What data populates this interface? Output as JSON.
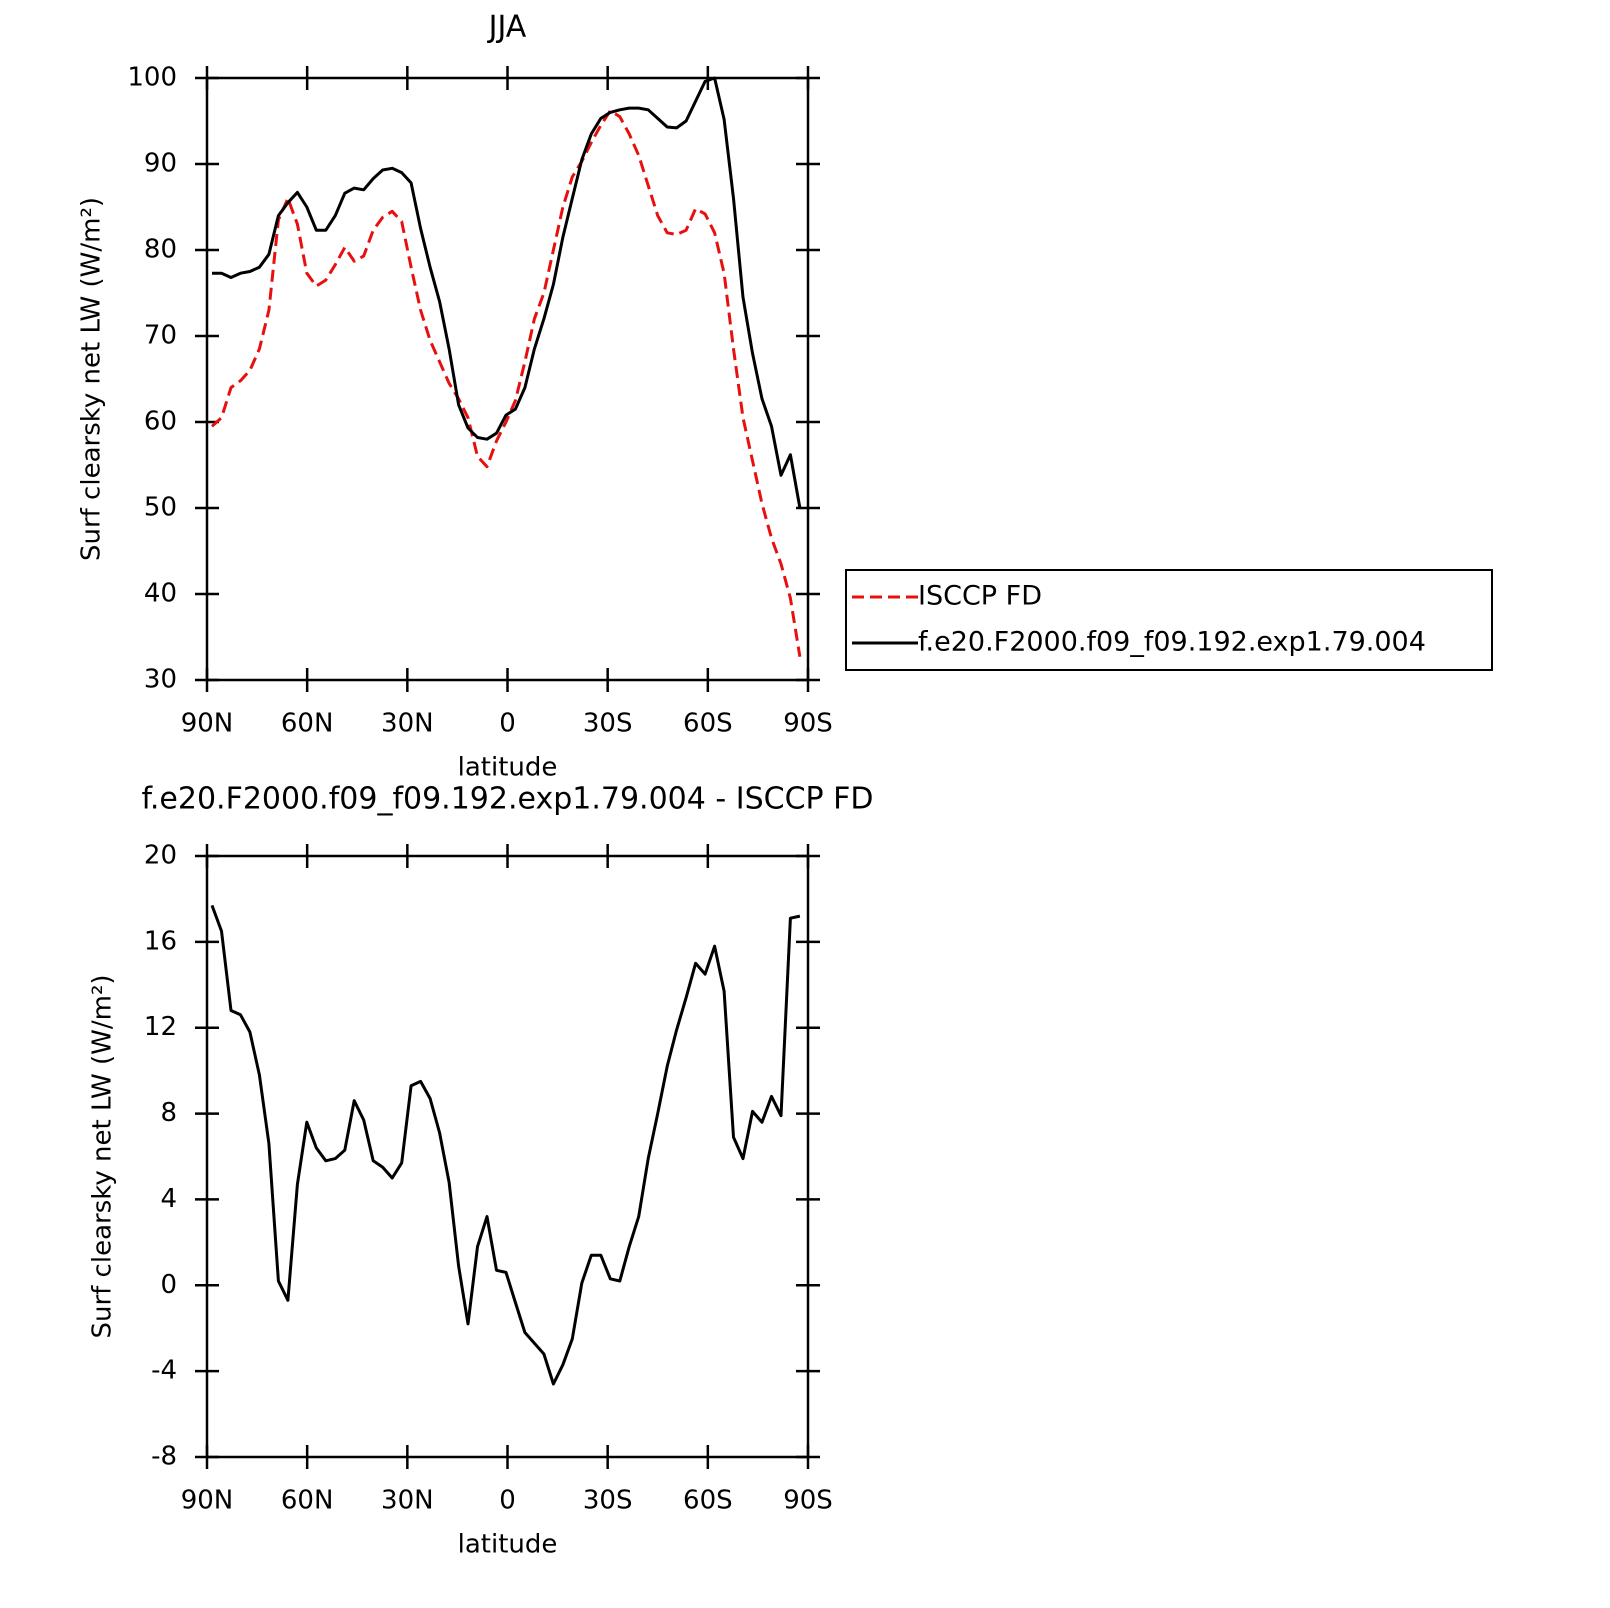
{
  "chart_data": [
    {
      "type": "line",
      "title": "JJA",
      "ylabel": "Surf clearsky net LW (W/m²)",
      "xlabel": "latitude",
      "xlim": [
        90,
        -90
      ],
      "xticks": [
        {
          "value": 90,
          "label": "90N"
        },
        {
          "value": 60,
          "label": "60N"
        },
        {
          "value": 30,
          "label": "30N"
        },
        0,
        {
          "value": -30,
          "label": "30S"
        },
        {
          "value": -60,
          "label": "60S"
        },
        {
          "value": -90,
          "label": "90S"
        }
      ],
      "ylim": [
        30,
        100
      ],
      "yticks": [
        30,
        40,
        50,
        60,
        70,
        80,
        90,
        100
      ],
      "legend": "outside-right",
      "x": [
        88.5,
        85.66,
        82.82,
        79.98,
        77.14,
        74.3,
        71.46,
        68.62,
        65.78,
        62.94,
        60.1,
        57.26,
        54.42,
        51.58,
        48.74,
        45.9,
        43.06,
        40.22,
        37.38,
        34.54,
        31.7,
        28.86,
        26.02,
        23.18,
        20.34,
        17.5,
        14.66,
        11.82,
        8.98,
        6.14,
        3.3,
        0.46,
        -2.38,
        -5.22,
        -8.06,
        -10.9,
        -13.74,
        -16.58,
        -19.42,
        -22.26,
        -25.1,
        -27.94,
        -30.78,
        -33.62,
        -36.46,
        -39.3,
        -42.14,
        -44.98,
        -47.82,
        -50.66,
        -53.5,
        -56.34,
        -59.18,
        -62.02,
        -64.86,
        -67.7,
        -70.54,
        -73.38,
        -76.22,
        -79.06,
        -81.9,
        -84.74,
        -87.58
      ],
      "series": [
        {
          "name": "ISCCP FD",
          "color": "#e8100f",
          "line_style": "dashed",
          "values": [
            59.5,
            60.5,
            64,
            64.8,
            66,
            68.5,
            73,
            83.5,
            86,
            83,
            77.3,
            75.8,
            76.5,
            78.3,
            80.3,
            78.7,
            79.3,
            82.3,
            83.8,
            84.5,
            83.3,
            78,
            73,
            69.5,
            67,
            64.5,
            62.7,
            60.5,
            56,
            54.8,
            57.8,
            60,
            62.5,
            67,
            72,
            75,
            80,
            85,
            88.5,
            90.3,
            92.5,
            94.5,
            96.2,
            95.5,
            93.5,
            91,
            87.5,
            84,
            82,
            81.8,
            82.3,
            84.8,
            84.2,
            82,
            77.3,
            68.5,
            60.5,
            55.5,
            50.5,
            46.5,
            43.5,
            39.5,
            32.7
          ]
        },
        {
          "name": "f.e20.F2000.f09_f09.192.exp1.79.004",
          "color": "#000000",
          "line_style": "solid",
          "values": [
            77.3,
            77.3,
            76.8,
            77.3,
            77.5,
            78,
            79.5,
            84,
            85.5,
            86.7,
            85,
            82.3,
            82.3,
            84,
            86.6,
            87.2,
            87,
            88.3,
            89.3,
            89.5,
            89,
            87.8,
            82.5,
            78,
            74,
            68.5,
            62,
            59.3,
            58.2,
            58,
            58.7,
            60.8,
            61.5,
            64,
            68.5,
            72,
            76,
            81.5,
            86,
            90.5,
            93.5,
            95.3,
            96,
            96.3,
            96.5,
            96.5,
            96.3,
            95.3,
            94.3,
            94.2,
            95,
            97.3,
            99.6,
            100,
            95.2,
            86,
            74.5,
            68,
            62.7,
            59.5,
            53.8,
            56.2,
            50
          ]
        }
      ]
    },
    {
      "type": "line",
      "title": "f.e20.F2000.f09_f09.192.exp1.79.004 - ISCCP FD",
      "ylabel": "Surf clearsky net LW (W/m²)",
      "xlabel": "latitude",
      "xlim": [
        90,
        -90
      ],
      "xticks": [
        {
          "value": 90,
          "label": "90N"
        },
        {
          "value": 60,
          "label": "60N"
        },
        {
          "value": 30,
          "label": "30N"
        },
        0,
        {
          "value": -30,
          "label": "30S"
        },
        {
          "value": -60,
          "label": "60S"
        },
        {
          "value": -90,
          "label": "90S"
        }
      ],
      "ylim": [
        -8,
        20
      ],
      "yticks": [
        -8,
        -4,
        0,
        4,
        8,
        12,
        16,
        20
      ],
      "x": [
        88.5,
        85.66,
        82.82,
        79.98,
        77.14,
        74.3,
        71.46,
        68.62,
        65.78,
        62.94,
        60.1,
        57.26,
        54.42,
        51.58,
        48.74,
        45.9,
        43.06,
        40.22,
        37.38,
        34.54,
        31.7,
        28.86,
        26.02,
        23.18,
        20.34,
        17.5,
        14.66,
        11.82,
        8.98,
        6.14,
        3.3,
        0.46,
        -2.38,
        -5.22,
        -8.06,
        -10.9,
        -13.74,
        -16.58,
        -19.42,
        -22.26,
        -25.1,
        -27.94,
        -30.78,
        -33.62,
        -36.46,
        -39.3,
        -42.14,
        -44.98,
        -47.82,
        -50.66,
        -53.5,
        -56.34,
        -59.18,
        -62.02,
        -64.86,
        -67.7,
        -70.54,
        -73.38,
        -76.22,
        -79.06,
        -81.9,
        -84.74,
        -87.58
      ],
      "series": [
        {
          "color": "#000000",
          "line_style": "solid",
          "values": [
            17.7,
            16.5,
            12.8,
            12.6,
            11.8,
            9.8,
            6.6,
            0.2,
            -0.7,
            4.7,
            7.6,
            6.4,
            5.8,
            5.9,
            6.3,
            8.6,
            7.7,
            5.8,
            5.5,
            5.0,
            5.7,
            9.3,
            9.5,
            8.7,
            7.1,
            4.8,
            0.9,
            -1.8,
            1.8,
            3.2,
            0.7,
            0.6,
            -0.8,
            -2.2,
            -2.7,
            -3.2,
            -4.6,
            -3.7,
            -2.5,
            0.1,
            1.4,
            1.4,
            0.3,
            0.2,
            1.8,
            3.2,
            5.9,
            8.0,
            10.2,
            11.9,
            13.4,
            15.0,
            14.5,
            15.8,
            13.7,
            6.9,
            5.9,
            8.1,
            7.6,
            8.8,
            7.9,
            17.1,
            17.2
          ]
        }
      ]
    }
  ]
}
